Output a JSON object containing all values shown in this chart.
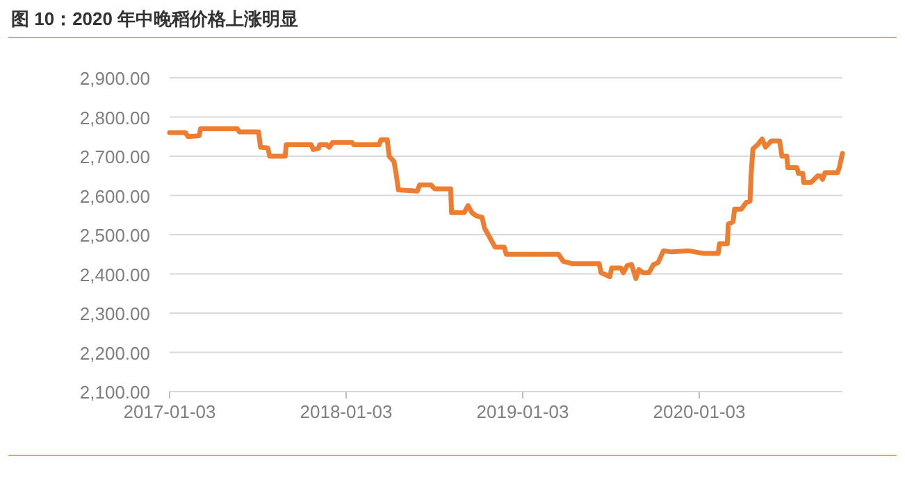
{
  "chart_data": {
    "type": "line",
    "title": "图 10：2020 年中晚稻价格上涨明显",
    "x": [
      "2017-01-03",
      "2017-02-05",
      "2017-02-10",
      "2017-03-05",
      "2017-03-08",
      "2017-05-23",
      "2017-05-27",
      "2017-07-06",
      "2017-07-10",
      "2017-07-25",
      "2017-07-29",
      "2017-08-30",
      "2017-09-01",
      "2017-10-23",
      "2017-10-27",
      "2017-11-07",
      "2017-11-09",
      "2017-11-24",
      "2017-11-29",
      "2017-12-06",
      "2018-01-15",
      "2018-01-19",
      "2018-03-12",
      "2018-03-16",
      "2018-03-29",
      "2018-04-02",
      "2018-04-12",
      "2018-04-17",
      "2018-04-21",
      "2018-05-30",
      "2018-06-04",
      "2018-06-27",
      "2018-07-05",
      "2018-08-07",
      "2018-08-09",
      "2018-09-04",
      "2018-09-12",
      "2018-09-20",
      "2018-09-29",
      "2018-10-11",
      "2018-10-16",
      "2018-10-25",
      "2018-11-07",
      "2018-11-26",
      "2018-11-30",
      "2019-03-18",
      "2019-03-28",
      "2019-04-16",
      "2019-06-10",
      "2019-06-14",
      "2019-07-02",
      "2019-07-06",
      "2019-07-25",
      "2019-07-30",
      "2019-08-07",
      "2019-08-16",
      "2019-08-25",
      "2019-08-31",
      "2019-09-09",
      "2019-09-21",
      "2019-09-30",
      "2019-10-10",
      "2019-10-21",
      "2019-11-07",
      "2019-12-11",
      "2020-01-13",
      "2020-02-11",
      "2020-02-14",
      "2020-03-01",
      "2020-03-03",
      "2020-03-13",
      "2020-03-16",
      "2020-03-30",
      "2020-04-09",
      "2020-04-17",
      "2020-04-19",
      "2020-04-23",
      "2020-05-03",
      "2020-05-12",
      "2020-05-19",
      "2020-05-31",
      "2020-06-17",
      "2020-06-22",
      "2020-07-02",
      "2020-07-04",
      "2020-07-23",
      "2020-07-26",
      "2020-08-04",
      "2020-08-06",
      "2020-08-21",
      "2020-09-04",
      "2020-09-09",
      "2020-09-14",
      "2020-09-19",
      "2020-10-15",
      "2020-10-19",
      "2020-10-25"
    ],
    "series": [
      {
        "color": "#ed7d31",
        "values": [
          2760,
          2760,
          2750,
          2752,
          2770,
          2770,
          2762,
          2762,
          2723,
          2721,
          2700,
          2700,
          2729,
          2729,
          2717,
          2720,
          2729,
          2729,
          2723,
          2735,
          2735,
          2729,
          2729,
          2742,
          2742,
          2700,
          2686,
          2650,
          2614,
          2611,
          2627,
          2627,
          2617,
          2617,
          2556,
          2556,
          2574,
          2556,
          2548,
          2544,
          2517,
          2497,
          2468,
          2468,
          2450,
          2450,
          2432,
          2426,
          2426,
          2403,
          2393,
          2415,
          2415,
          2403,
          2421,
          2424,
          2388,
          2411,
          2403,
          2403,
          2423,
          2429,
          2459,
          2456,
          2459,
          2452,
          2452,
          2477,
          2477,
          2527,
          2533,
          2565,
          2565,
          2582,
          2585,
          2650,
          2719,
          2730,
          2744,
          2723,
          2739,
          2739,
          2700,
          2700,
          2671,
          2671,
          2656,
          2656,
          2633,
          2633,
          2650,
          2650,
          2641,
          2658,
          2658,
          2673,
          2707
        ]
      }
    ],
    "xlim": [
      "2017-01-03",
      "2020-10-25"
    ],
    "xticks": [
      "2017-01-03",
      "2018-01-03",
      "2019-01-03",
      "2020-01-03"
    ],
    "ylim": [
      2100,
      2900
    ],
    "yticks": [
      {
        "value": 2100,
        "label": "2,100.00"
      },
      {
        "value": 2200,
        "label": "2,200.00"
      },
      {
        "value": 2300,
        "label": "2,300.00"
      },
      {
        "value": 2400,
        "label": "2,400.00"
      },
      {
        "value": 2500,
        "label": "2,500.00"
      },
      {
        "value": 2600,
        "label": "2,600.00"
      },
      {
        "value": 2700,
        "label": "2,700.00"
      },
      {
        "value": 2800,
        "label": "2,800.00"
      },
      {
        "value": 2900,
        "label": "2,900.00"
      }
    ],
    "grid": "y",
    "marker": "none",
    "line_style": "solid"
  }
}
